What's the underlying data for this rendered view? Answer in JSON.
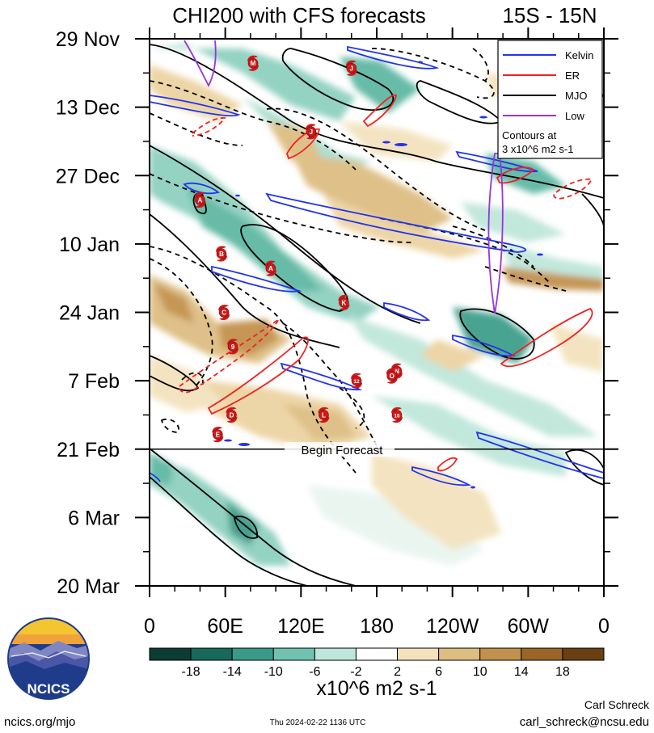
{
  "header": {
    "title": "CHI200 with CFS forecasts",
    "region": "15S - 15N"
  },
  "chart_data": {
    "type": "heatmap",
    "title": "CHI200 with CFS forecasts",
    "subtitle": "15S - 15N",
    "x_ticks": [
      "0",
      "60E",
      "120E",
      "180",
      "120W",
      "60W",
      "0"
    ],
    "x_values": [
      0,
      60,
      120,
      180,
      240,
      300,
      360
    ],
    "xlim": [
      0,
      360
    ],
    "y_ticks": [
      "29 Nov",
      "13 Dec",
      "27 Dec",
      "10 Jan",
      "24 Jan",
      "7 Feb",
      "21 Feb",
      "6 Mar",
      "20 Mar"
    ],
    "y_values": [
      "2023-11-29",
      "2023-12-13",
      "2023-12-27",
      "2024-01-10",
      "2024-01-24",
      "2024-02-07",
      "2024-02-21",
      "2024-03-06",
      "2024-03-20"
    ],
    "ylim": [
      "2023-11-29",
      "2024-03-20"
    ],
    "forecast_start": "2024-02-21",
    "forecast_label": "Begin Forecast",
    "legend": {
      "placement": "top-right",
      "entries": [
        {
          "name": "Kelvin",
          "color": "#2233ee"
        },
        {
          "name": "ER",
          "color": "#ee2222"
        },
        {
          "name": "MJO",
          "color": "#000000"
        },
        {
          "name": "Low",
          "color": "#9933dd"
        }
      ],
      "note_line1": "Contours at",
      "note_line2": "3 x10^6 m2 s-1"
    },
    "colorbar": {
      "levels": [
        "-18",
        "-14",
        "-10",
        "-6",
        "-2",
        "2",
        "6",
        "10",
        "14",
        "18"
      ],
      "colors": [
        "#0b3d33",
        "#17695a",
        "#3a9a88",
        "#72c2b0",
        "#bfe6da",
        "#ffffff",
        "#f3e2bd",
        "#ddbd82",
        "#c2914d",
        "#9a6526",
        "#6a3f12"
      ],
      "units": "x10^6 m2 s-1"
    },
    "storms": [
      {
        "label": "M",
        "lon": 82,
        "date": "2023-12-04"
      },
      {
        "label": "J",
        "lon": 160,
        "date": "2023-12-05"
      },
      {
        "label": "J",
        "lon": 128,
        "date": "2023-12-18"
      },
      {
        "label": "A",
        "lon": 40,
        "date": "2024-01-01"
      },
      {
        "label": "B",
        "lon": 57,
        "date": "2024-01-12"
      },
      {
        "label": "A",
        "lon": 96,
        "date": "2024-01-15"
      },
      {
        "label": "K",
        "lon": 154,
        "date": "2024-01-22"
      },
      {
        "label": "C",
        "lon": 59,
        "date": "2024-01-24"
      },
      {
        "label": "9",
        "lon": 66,
        "date": "2024-01-31"
      },
      {
        "label": "12",
        "lon": 164,
        "date": "2024-02-07"
      },
      {
        "label": "N",
        "lon": 196,
        "date": "2024-02-05"
      },
      {
        "label": "O",
        "lon": 192,
        "date": "2024-02-06"
      },
      {
        "label": "D",
        "lon": 65,
        "date": "2024-02-14"
      },
      {
        "label": "L",
        "lon": 138,
        "date": "2024-02-14"
      },
      {
        "label": "15",
        "lon": 196,
        "date": "2024-02-14"
      },
      {
        "label": "E",
        "lon": 54,
        "date": "2024-02-18"
      }
    ]
  },
  "footer": {
    "logo_text": "NCICS",
    "url": "ncics.org/mjo",
    "timestamp": "Thu 2024-02-22 1136 UTC",
    "author": "Carl Schreck",
    "email": "carl_schreck@ncsu.edu"
  }
}
